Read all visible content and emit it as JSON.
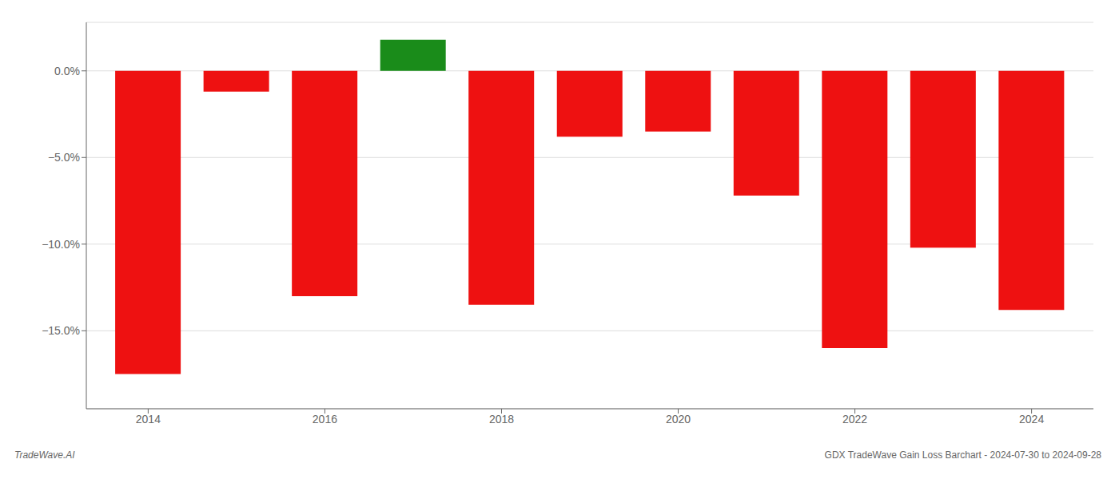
{
  "chart_data": {
    "type": "bar",
    "x": [
      2014,
      2015,
      2016,
      2017,
      2018,
      2019,
      2020,
      2021,
      2022,
      2023,
      2024
    ],
    "values": [
      -17.5,
      -1.2,
      -13.0,
      1.8,
      -13.5,
      -3.8,
      -3.5,
      -7.2,
      -16.0,
      -10.2,
      -13.8
    ],
    "colors": [
      "#ee1111",
      "#ee1111",
      "#ee1111",
      "#1a8c1a",
      "#ee1111",
      "#ee1111",
      "#ee1111",
      "#ee1111",
      "#ee1111",
      "#ee1111",
      "#ee1111"
    ],
    "xlim": [
      2013.3,
      2024.7
    ],
    "xticks": [
      2014,
      2016,
      2018,
      2020,
      2022,
      2024
    ],
    "ylim": [
      -19.5,
      2.8
    ],
    "yticks": [
      {
        "value": 0.0,
        "label": "0.0%"
      },
      {
        "value": -5.0,
        "label": "−5.0%"
      },
      {
        "value": -10.0,
        "label": "−10.0%"
      },
      {
        "value": -15.0,
        "label": "−15.0%"
      }
    ],
    "grid": true,
    "annotations": [
      "TradeWave.AI",
      "GDX TradeWave Gain Loss Barchart - 2024-07-30 to 2024-09-28"
    ]
  }
}
